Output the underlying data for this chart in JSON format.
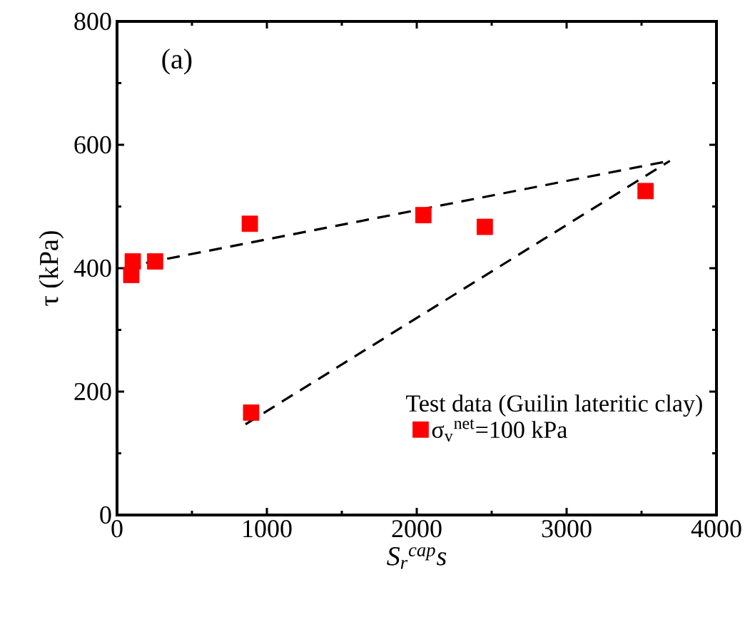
{
  "chart_data": {
    "type": "scatter",
    "xlabel": "S$_{r}$$^{cap}$s",
    "ylabel": "τ (kPa)",
    "legend_title": "Test data  (Guilin lateritic clay)",
    "annotations": [
      "(a)"
    ],
    "series": [
      {
        "name": "σ$_{v}$$^{net}$=100 kPa",
        "color": "#ff0000",
        "marker": "square",
        "x": [
          95,
          105,
          254,
          886,
          895,
          2044,
          2454,
          3527
        ],
        "values": [
          389,
          411,
          411,
          472,
          166,
          486,
          467,
          525
        ]
      },
      {
        "type": "line",
        "color": "#000000",
        "line_style": "dashed",
        "marker": "none",
        "x": [
          54,
          3689
        ],
        "values": [
          402,
          574
        ]
      },
      {
        "type": "line",
        "color": "#000000",
        "line_style": "dashed",
        "marker": "none",
        "x": [
          857,
          3689
        ],
        "values": [
          147,
          574
        ]
      }
    ],
    "xlim": [
      0,
      4000
    ],
    "ylim": [
      0,
      800
    ],
    "xticks": [
      0,
      1000,
      2000,
      3000,
      4000
    ],
    "yticks": [
      0,
      200,
      400,
      600,
      800
    ],
    "grid": false,
    "legend": "bottom right"
  }
}
